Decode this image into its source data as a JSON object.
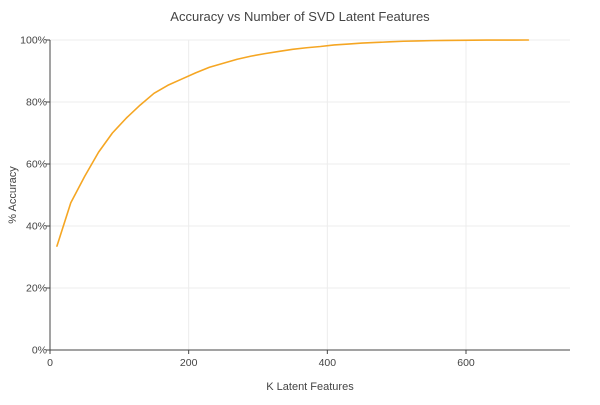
{
  "chart_data": {
    "type": "line",
    "title": "Accuracy vs Number of SVD Latent Features",
    "xlabel": "K Latent Features",
    "ylabel": "% Accuracy",
    "xlim": [
      0,
      750
    ],
    "ylim": [
      0,
      1
    ],
    "x_ticks": [
      0,
      200,
      400,
      600
    ],
    "x_tick_labels": [
      "0",
      "200",
      "400",
      "600"
    ],
    "y_ticks": [
      0,
      0.2,
      0.4,
      0.6,
      0.8,
      1.0
    ],
    "y_tick_labels": [
      "0%",
      "20%",
      "40%",
      "60%",
      "80%",
      "100%"
    ],
    "grid": true,
    "legend": "none",
    "series": [
      {
        "color": "#f5a623",
        "x": [
          10,
          30,
          50,
          70,
          90,
          110,
          130,
          150,
          170,
          190,
          210,
          230,
          250,
          270,
          290,
          310,
          330,
          350,
          370,
          390,
          410,
          430,
          450,
          470,
          490,
          510,
          530,
          550,
          570,
          590,
          610,
          630,
          650,
          670,
          690
        ],
        "y": [
          0.335,
          0.475,
          0.56,
          0.638,
          0.7,
          0.748,
          0.79,
          0.828,
          0.854,
          0.874,
          0.894,
          0.912,
          0.925,
          0.938,
          0.948,
          0.956,
          0.963,
          0.97,
          0.975,
          0.979,
          0.984,
          0.987,
          0.99,
          0.992,
          0.994,
          0.996,
          0.997,
          0.998,
          0.9985,
          0.999,
          0.9995,
          0.9997,
          0.9998,
          0.9999,
          1.0
        ]
      }
    ]
  }
}
